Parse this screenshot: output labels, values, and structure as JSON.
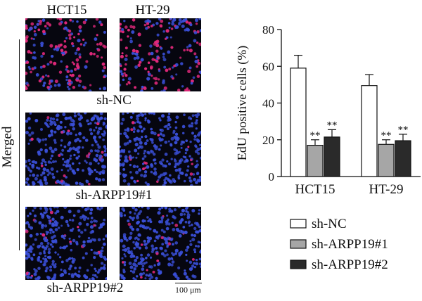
{
  "micrographs": {
    "columns": [
      "HCT15",
      "HT-29"
    ],
    "rows": [
      "sh-NC",
      "sh-ARPP19#1",
      "sh-ARPP19#2"
    ],
    "side_label": "Merged",
    "scale_bar": "100 μm",
    "stain_colors": {
      "background": "#06060f",
      "nuclei": "#3a4fd8",
      "edu": "#e0287a"
    },
    "edu_fraction": {
      "sh-NC": [
        0.59,
        0.5
      ],
      "sh-ARPP19#1": [
        0.04,
        0.04
      ],
      "sh-ARPP19#2": [
        0.05,
        0.05
      ]
    }
  },
  "chart_data": {
    "type": "bar",
    "categories": [
      "HCT15",
      "HT-29"
    ],
    "ylabel": "EdU positive cells (%)",
    "ylim": [
      0,
      80
    ],
    "yticks": [
      0,
      20,
      40,
      60,
      80
    ],
    "grid": false,
    "legend_position": "bottom-right",
    "significance_mark": "**",
    "series": [
      {
        "name": "sh-NC",
        "values": [
          59,
          49.5
        ],
        "errors": [
          7,
          6
        ],
        "color": "#ffffff",
        "significant": [
          false,
          false
        ]
      },
      {
        "name": "sh-ARPP19#1",
        "values": [
          17,
          17.5
        ],
        "errors": [
          3,
          2.5
        ],
        "color": "#a6a6a6",
        "significant": [
          true,
          true
        ]
      },
      {
        "name": "sh-ARPP19#2",
        "values": [
          21.5,
          19.5
        ],
        "errors": [
          4,
          3.5
        ],
        "color": "#2a2a2a",
        "significant": [
          true,
          true
        ]
      }
    ]
  }
}
